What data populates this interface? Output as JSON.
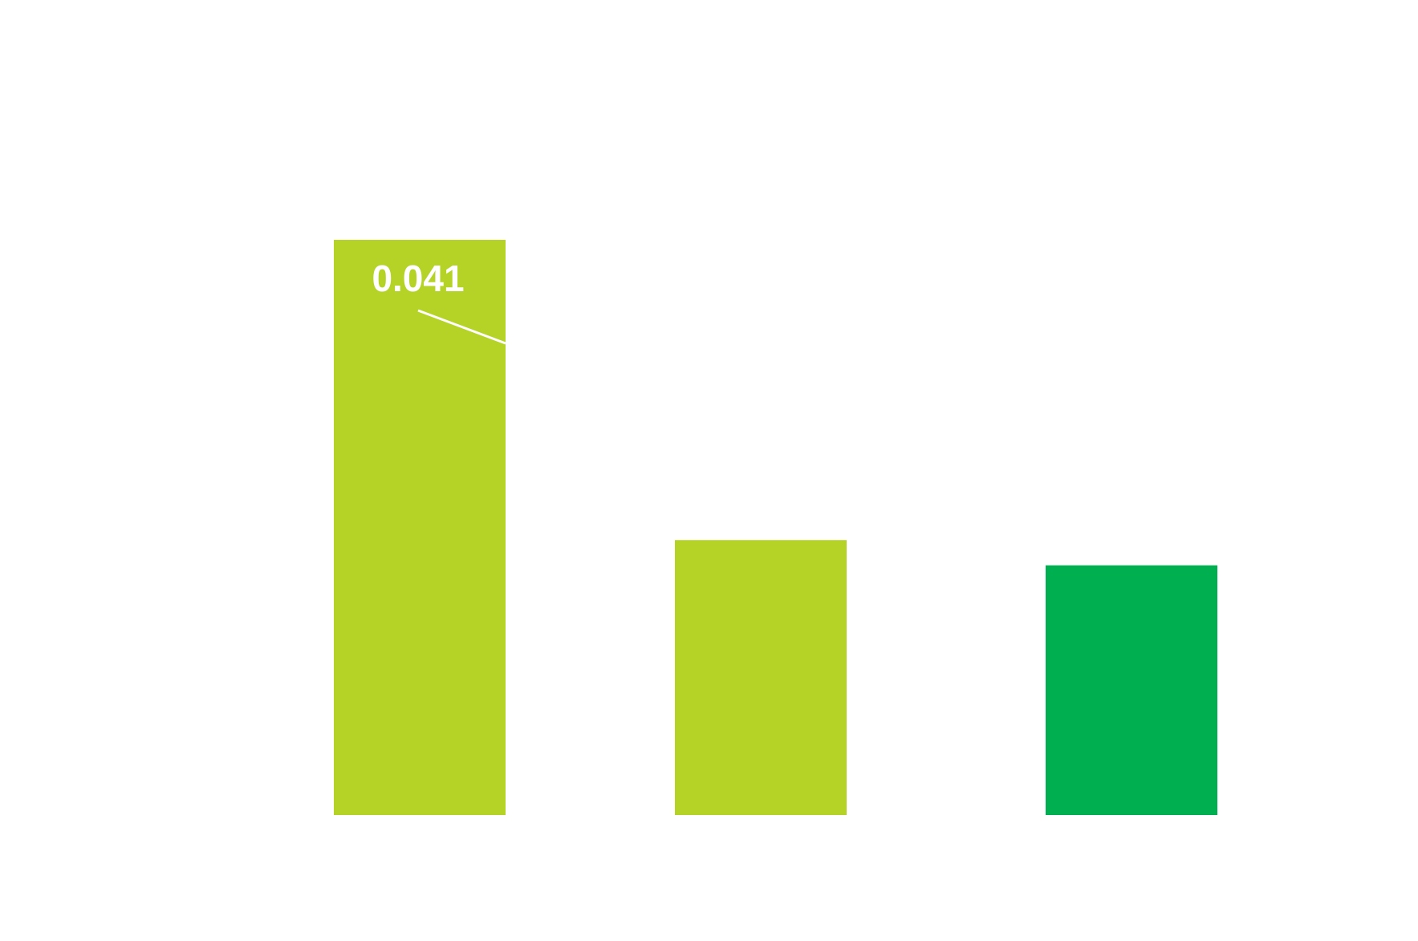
{
  "chart_data": {
    "type": "bar",
    "categories": [
      "",
      "",
      ""
    ],
    "values": [
      0.041,
      0.0196,
      0.0178
    ],
    "colors": [
      "#b5d327",
      "#b5d327",
      "#00af50"
    ],
    "data_labels": [
      "0.041",
      "",
      ""
    ],
    "ylim": [
      0,
      0.06
    ],
    "grid": false,
    "legend": "none"
  }
}
